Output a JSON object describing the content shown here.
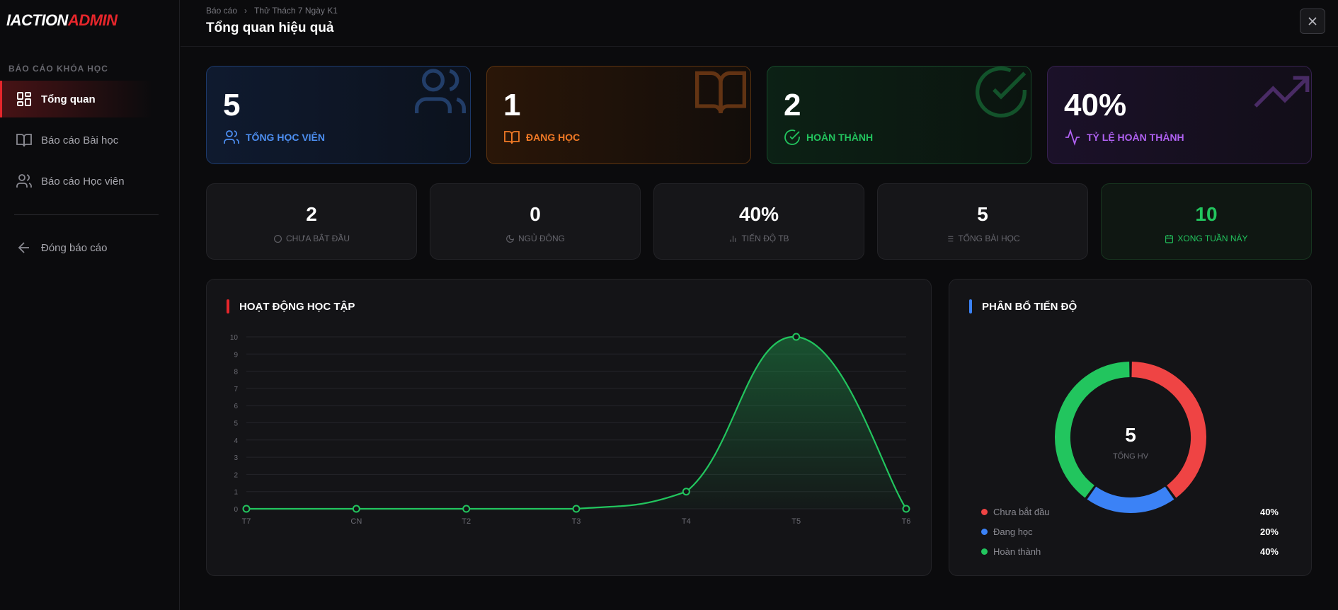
{
  "logo": {
    "part1": "IACTION",
    "part2": "ADMIN"
  },
  "sidebar": {
    "section_label": "BÁO CÁO KHÓA HỌC",
    "items": [
      {
        "label": "Tổng quan",
        "icon": "grid-icon",
        "active": true
      },
      {
        "label": "Báo cáo Bài học",
        "icon": "book-open-icon",
        "active": false
      },
      {
        "label": "Báo cáo Học viên",
        "icon": "users-icon",
        "active": false
      }
    ],
    "back_label": "Đóng báo cáo"
  },
  "header": {
    "breadcrumb": [
      "Báo cáo",
      "Thử Thách 7 Ngày K1"
    ],
    "title": "Tổng quan hiệu quả"
  },
  "stats": [
    {
      "value": "5",
      "label": "TỔNG HỌC VIÊN",
      "icon": "users-icon",
      "color": "#4d8ff2"
    },
    {
      "value": "1",
      "label": "ĐANG HỌC",
      "icon": "book-open-icon",
      "color": "#f27a26"
    },
    {
      "value": "2",
      "label": "HOÀN THÀNH",
      "icon": "check-circle-icon",
      "color": "#22c55e"
    },
    {
      "value": "40%",
      "label": "TỶ LỆ HOÀN THÀNH",
      "icon": "activity-icon",
      "color": "#b061f2"
    }
  ],
  "mini_stats": [
    {
      "value": "2",
      "label": "CHƯA BẮT ĐẦU",
      "icon": "circle-icon"
    },
    {
      "value": "0",
      "label": "NGỦ ĐÔNG",
      "icon": "moon-icon"
    },
    {
      "value": "40%",
      "label": "TIẾN ĐỘ TB",
      "icon": "bar-chart-icon"
    },
    {
      "value": "5",
      "label": "TỔNG BÀI HỌC",
      "icon": "list-icon"
    },
    {
      "value": "10",
      "label": "XONG TUẦN NÀY",
      "icon": "calendar-icon"
    }
  ],
  "activity_panel": {
    "title": "HOẠT ĐỘNG HỌC TẬP",
    "accent": "#e5262b"
  },
  "progress_panel": {
    "title": "PHÂN BỔ TIẾN ĐỘ",
    "accent": "#3b82f6",
    "center_value": "5",
    "center_label": "TỔNG HV",
    "legend": [
      {
        "label": "Chưa bắt đầu",
        "pct": "40%",
        "color": "#ef4444"
      },
      {
        "label": "Đang học",
        "pct": "20%",
        "color": "#3b82f6"
      },
      {
        "label": "Hoàn thành",
        "pct": "40%",
        "color": "#22c55e"
      }
    ]
  },
  "chart_data": {
    "type": "area",
    "categories": [
      "T7",
      "CN",
      "T2",
      "T3",
      "T4",
      "T5",
      "T6"
    ],
    "values": [
      0,
      0,
      0,
      0,
      1,
      10,
      0
    ],
    "ylim": [
      0,
      10
    ],
    "yticks": [
      0,
      1,
      2,
      3,
      4,
      5,
      6,
      7,
      8,
      9,
      10
    ],
    "grid": true,
    "line_color": "#22c55e"
  },
  "pie_data": {
    "type": "pie",
    "categories": [
      "Chưa bắt đầu",
      "Đang học",
      "Hoàn thành"
    ],
    "values": [
      40,
      20,
      40
    ],
    "colors": [
      "#ef4444",
      "#3b82f6",
      "#22c55e"
    ]
  }
}
